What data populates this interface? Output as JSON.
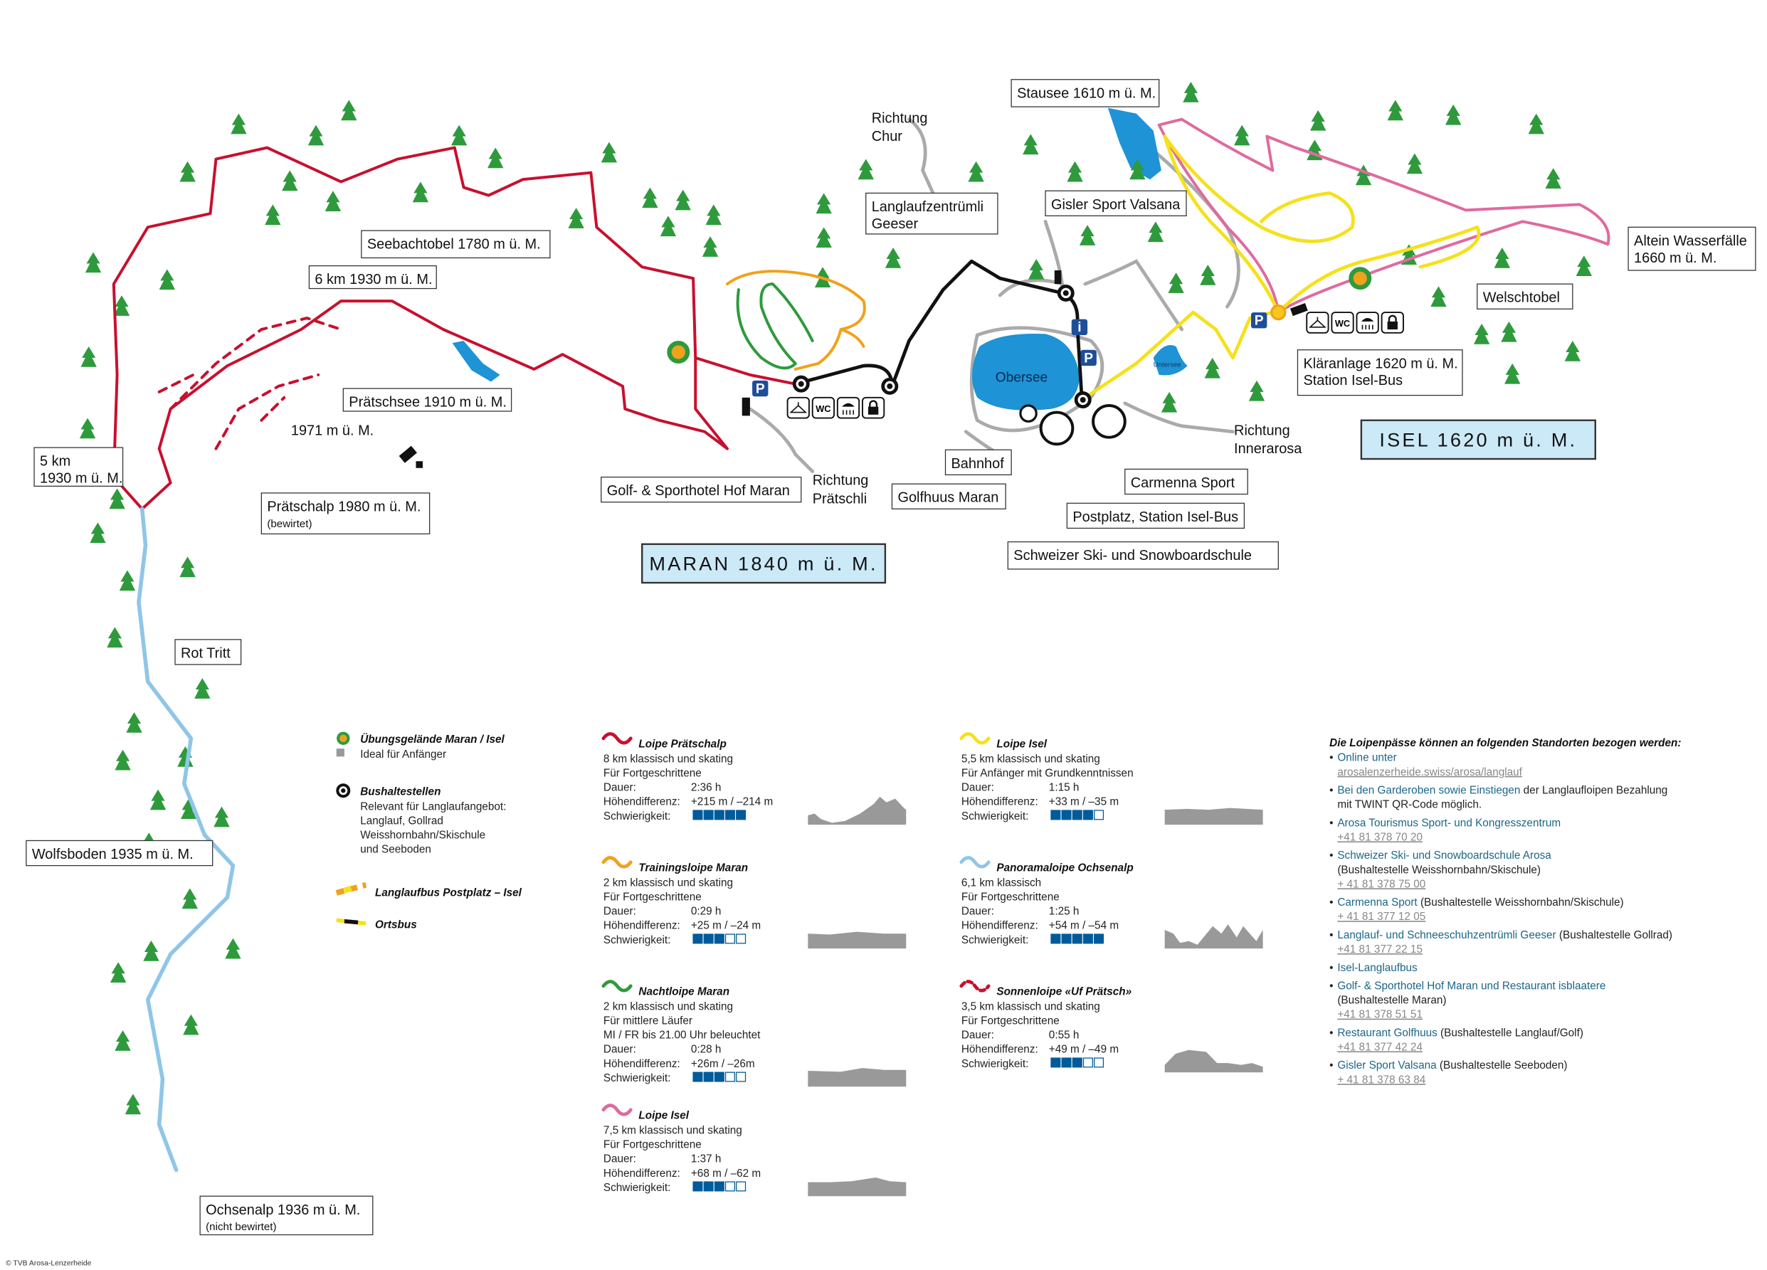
{
  "colors": {
    "praetschalp": "#c8102e",
    "training": "#f0a21c",
    "nacht": "#2e9a3c",
    "isel_pink": "#e06a9e",
    "isel_yellow": "#f5e11c",
    "panorama": "#8fc6e8",
    "lake": "#1e93d6",
    "tree": "#2e9a3c",
    "road": "#aaaaaa",
    "difficulty": "#005b9a",
    "town_box": "#cce9f8"
  },
  "map": {
    "labels": {
      "stausee": [
        "Stausee 1610 m ü. M."
      ],
      "richtung_chur": [
        "Richtung",
        "Chur"
      ],
      "geeser": [
        "Langlaufzentrümli",
        "Geeser"
      ],
      "gisler": [
        "Gisler Sport Valsana"
      ],
      "altein": [
        "Altein Wasserfälle",
        "1660 m ü. M."
      ],
      "seebachtobel": [
        "Seebachtobel 1780 m ü. M."
      ],
      "six_km": [
        "6 km 1930 m ü. M."
      ],
      "welschtobel": [
        "Welschtobel"
      ],
      "praetschsee": [
        "Prätschsee 1910 m ü. M."
      ],
      "klaeranlage": [
        "Kläranlage 1620 m ü. M.",
        "Station Isel-Bus"
      ],
      "p1971": [
        "1971 m ü. M."
      ],
      "isel": [
        "ISEL 1620 m ü. M."
      ],
      "innerarosa": [
        "Richtung",
        "Innerarosa"
      ],
      "five_km": [
        "5 km",
        "1930 m ü. M."
      ],
      "bahnhof": [
        "Bahnhof"
      ],
      "praetschli": [
        "Richtung",
        "Prätschli"
      ],
      "hof_maran": [
        "Golf- & Sporthotel Hof Maran"
      ],
      "golfhuus": [
        "Golfhuus Maran"
      ],
      "carmenna": [
        "Carmenna Sport"
      ],
      "praetschalp": [
        "Prätschalp 1980 m ü. M.",
        "(bewirtet)"
      ],
      "postplatz": [
        "Postplatz, Station Isel-Bus"
      ],
      "maran": [
        "MARAN 1840 m ü. M."
      ],
      "skischule": [
        "Schweizer Ski- und Snowboardschule"
      ],
      "rot_tritt": [
        "Rot Tritt"
      ],
      "wolfsboden": [
        "Wolfsboden 1935 m ü. M."
      ],
      "ochsenalp": [
        "Ochsenalp 1936 m ü. M.",
        "(nicht bewirtet)"
      ],
      "obersee": [
        "Obersee"
      ],
      "untersee": [
        "Untersee"
      ]
    },
    "facility_icons": [
      "cloakroom-icon",
      "wc-icon",
      "shower-icon",
      "locker-icon"
    ],
    "wc_label": "WC",
    "parking_label": "P",
    "info_label": "i"
  },
  "key": [
    {
      "icon": "training-area-icon",
      "title": "Übungsgelände Maran / Isel",
      "lines": [
        "Ideal für Anfänger"
      ]
    },
    {
      "icon": "bus-stop-icon",
      "title": "Bushaltestellen",
      "lines": [
        "Relevant für Langlaufangebot:",
        "Langlauf, Gollrad",
        "Weisshornbahn/Skischule",
        "und Seeboden"
      ]
    },
    {
      "icon": "langlaufbus-line-icon",
      "title": "Langlaufbus Postplatz – Isel",
      "lines": []
    },
    {
      "icon": "ortsbus-line-icon",
      "title": "Ortsbus",
      "lines": []
    }
  ],
  "routes": [
    {
      "name": "Loipe Prätschalp",
      "color": "#c8102e",
      "dashed": false,
      "lines": [
        "8 km klassisch und skating",
        "Für Fortgeschrittene"
      ],
      "duration": "2:36 h",
      "elevation": "+215 m / –214 m",
      "difficulty": 5
    },
    {
      "name": "Trainingsloipe Maran",
      "color": "#f0a21c",
      "dashed": false,
      "lines": [
        "2 km klassisch und skating",
        "Für Fortgeschrittene"
      ],
      "duration": "0:29 h",
      "elevation": "+25 m / –24 m",
      "difficulty": 3
    },
    {
      "name": "Nachtloipe Maran",
      "color": "#2e9a3c",
      "dashed": false,
      "lines": [
        "2 km klassisch und skating",
        "Für mittlere Läufer",
        "MI / FR bis 21.00 Uhr beleuchtet"
      ],
      "duration": "0:28 h",
      "elevation": "+26m / –26m",
      "difficulty": 3
    },
    {
      "name": "Loipe Isel",
      "color": "#e06a9e",
      "dashed": false,
      "lines": [
        "7,5 km klassisch und skating",
        "Für Fortgeschrittene"
      ],
      "duration": "1:37 h",
      "elevation": "+68 m / –62 m",
      "difficulty": 3
    },
    {
      "name": "Loipe Isel",
      "color": "#f5e11c",
      "dashed": false,
      "lines": [
        "5,5 km klassisch und skating",
        "Für Anfänger mit Grundkenntnissen"
      ],
      "duration": "1:15 h",
      "elevation": "+33 m / –35 m",
      "difficulty": 4
    },
    {
      "name": "Panoramaloipe Ochsenalp",
      "color": "#8fc6e8",
      "dashed": false,
      "lines": [
        "6,1 km klassisch",
        "Für Fortgeschrittene"
      ],
      "duration": "1:25 h",
      "elevation": "+54 m / –54 m",
      "difficulty": 5
    },
    {
      "name": "Sonnenloipe «Uf Prätsch»",
      "color": "#c8102e",
      "dashed": true,
      "lines": [
        "3,5 km klassisch und skating",
        "Für Fortgeschrittene"
      ],
      "duration": "0:55 h",
      "elevation": "+49 m / –49 m",
      "difficulty": 3
    }
  ],
  "route_field_labels": {
    "duration": "Dauer:",
    "elevation": "Höhendifferenz:",
    "difficulty": "Schwierigkeit:"
  },
  "difficulty_max": 5,
  "sales": {
    "title": "Die Loipenpässe können an folgenden Standorten bezogen werden:",
    "items": [
      {
        "link": "Online unter",
        "extra": "",
        "lines": [],
        "phone": "arosalenzerheide.swiss/arosa/langlauf"
      },
      {
        "link": "Bei den Garderoben sowie Einstiegen",
        "extra": " der Langlaufloipen Bezahlung",
        "lines": [
          "mit TWINT QR-Code möglich."
        ],
        "phone": ""
      },
      {
        "link": "Arosa Tourismus Sport- und Kongresszentrum",
        "extra": "",
        "lines": [],
        "phone": "+41 81 378 70 20"
      },
      {
        "link": "Schweizer Ski- und Snowboardschule Arosa",
        "extra": "",
        "lines": [
          "(Bushaltestelle Weisshornbahn/Skischule)"
        ],
        "phone": "+ 41 81 378 75 00"
      },
      {
        "link": "Carmenna Sport",
        "extra": " (Bushaltestelle Weisshornbahn/Skischule)",
        "lines": [],
        "phone": "+ 41 81 377 12 05"
      },
      {
        "link": "Langlauf- und Schneeschuhzentrümli Geeser",
        "extra": " (Bushaltestelle Gollrad)",
        "lines": [],
        "phone": "+41 81 377 22 15"
      },
      {
        "link": "Isel-Langlaufbus",
        "extra": "",
        "lines": [],
        "phone": ""
      },
      {
        "link": "Golf- & Sporthotel Hof Maran und Restaurant isblaatere",
        "extra": "",
        "lines": [
          "(Bushaltestelle Maran)"
        ],
        "phone": "+41 81 378 51 51"
      },
      {
        "link": "Restaurant Golfhuus",
        "extra": " (Bushaltestelle Langlauf/Golf)",
        "lines": [],
        "phone": "+41 81 377 42 24"
      },
      {
        "link": "Gisler Sport Valsana",
        "extra": " (Bushaltestelle Seeboden)",
        "lines": [],
        "phone": "+ 41 81 378 63 84"
      }
    ]
  },
  "copyright": "© TVB Arosa-Lenzerheide"
}
